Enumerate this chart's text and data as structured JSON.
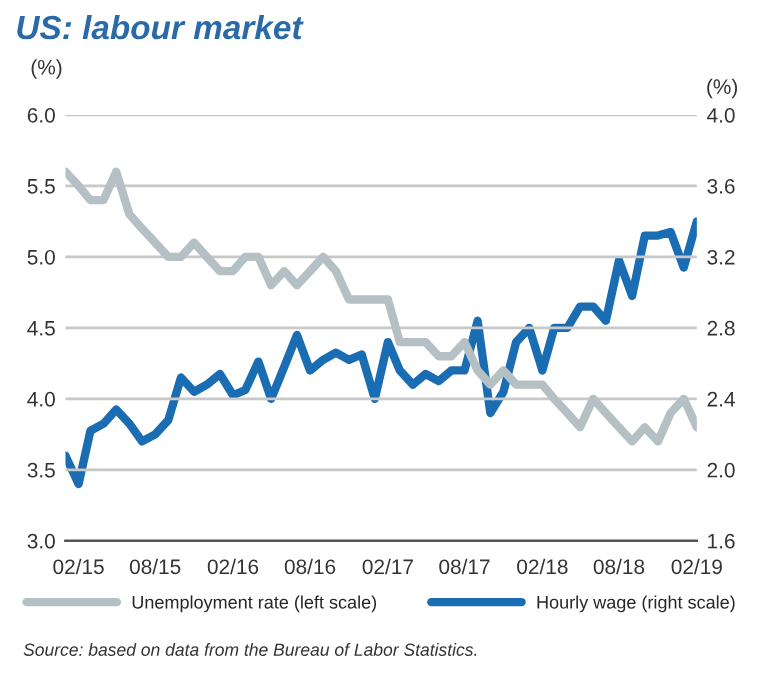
{
  "chart_data": {
    "type": "line",
    "title": "US: labour market",
    "ylabel": "(%)",
    "y2label": "(%)",
    "x": [
      "2015-01",
      "2015-02",
      "2015-03",
      "2015-04",
      "2015-05",
      "2015-06",
      "2015-07",
      "2015-08",
      "2015-09",
      "2015-10",
      "2015-11",
      "2015-12",
      "2016-01",
      "2016-02",
      "2016-03",
      "2016-04",
      "2016-05",
      "2016-06",
      "2016-07",
      "2016-08",
      "2016-09",
      "2016-10",
      "2016-11",
      "2016-12",
      "2017-01",
      "2017-02",
      "2017-03",
      "2017-04",
      "2017-05",
      "2017-06",
      "2017-07",
      "2017-08",
      "2017-09",
      "2017-10",
      "2017-11",
      "2017-12",
      "2018-01",
      "2018-02",
      "2018-03",
      "2018-04",
      "2018-05",
      "2018-06",
      "2018-07",
      "2018-08",
      "2018-09",
      "2018-10",
      "2018-11",
      "2018-12",
      "2019-01",
      "2019-02"
    ],
    "series": [
      {
        "name": "Unemployment rate (left scale)",
        "color": "#b5c0c5",
        "values": [
          5.6,
          5.5,
          5.4,
          5.4,
          5.6,
          5.3,
          5.2,
          5.1,
          5.0,
          5.0,
          5.1,
          5.0,
          4.9,
          4.9,
          5.0,
          5.0,
          4.8,
          4.9,
          4.8,
          4.9,
          5.0,
          4.9,
          4.7,
          4.7,
          4.7,
          4.7,
          4.4,
          4.4,
          4.4,
          4.3,
          4.3,
          4.4,
          4.2,
          4.1,
          4.2,
          4.1,
          4.1,
          4.1,
          4.0,
          3.9,
          3.8,
          4.0,
          3.9,
          3.8,
          3.7,
          3.8,
          3.7,
          3.9,
          4.0,
          3.8
        ]
      },
      {
        "name": "Hourly wage (right scale)",
        "color": "#1a6db3",
        "axis": "y2",
        "values": [
          2.08,
          1.92,
          2.22,
          2.26,
          2.34,
          2.26,
          2.16,
          2.2,
          2.28,
          2.52,
          2.44,
          2.48,
          2.54,
          2.42,
          2.45,
          2.61,
          2.4,
          2.58,
          2.76,
          2.56,
          2.62,
          2.66,
          2.62,
          2.65,
          2.4,
          2.72,
          2.56,
          2.48,
          2.54,
          2.5,
          2.56,
          2.56,
          2.84,
          2.32,
          2.44,
          2.72,
          2.8,
          2.56,
          2.8,
          2.8,
          2.92,
          2.92,
          2.84,
          3.18,
          2.98,
          3.32,
          3.32,
          3.34,
          3.14,
          3.4
        ]
      }
    ],
    "xlim": [
      "2015-01",
      "2019-02"
    ],
    "xticks": [
      {
        "value": "2015-02",
        "label": "02/15"
      },
      {
        "value": "2015-08",
        "label": "08/15"
      },
      {
        "value": "2016-02",
        "label": "02/16"
      },
      {
        "value": "2016-08",
        "label": "08/16"
      },
      {
        "value": "2017-02",
        "label": "02/17"
      },
      {
        "value": "2017-08",
        "label": "08/17"
      },
      {
        "value": "2018-02",
        "label": "02/18"
      },
      {
        "value": "2018-08",
        "label": "08/18"
      },
      {
        "value": "2019-02",
        "label": "02/19"
      }
    ],
    "ylim": [
      3.0,
      6.0
    ],
    "yticks": [
      {
        "value": 3.0,
        "label": "3.0"
      },
      {
        "value": 3.5,
        "label": "3.5"
      },
      {
        "value": 4.0,
        "label": "4.0"
      },
      {
        "value": 4.5,
        "label": "4.5"
      },
      {
        "value": 5.0,
        "label": "5.0"
      },
      {
        "value": 5.5,
        "label": "5.5"
      },
      {
        "value": 6.0,
        "label": "6.0"
      }
    ],
    "y2lim": [
      1.6,
      4.0
    ],
    "y2ticks": [
      1.6,
      {
        "value": 2.0,
        "label": "2.0"
      },
      2.4,
      2.8,
      3.2,
      3.6,
      {
        "value": 4.0,
        "label": "4.0"
      }
    ],
    "grid": "y",
    "legend": "bottom",
    "line_style": "solid",
    "marker": "none",
    "annotations": [
      "Source: based on data from the Bureau of Labor Statistics."
    ]
  }
}
